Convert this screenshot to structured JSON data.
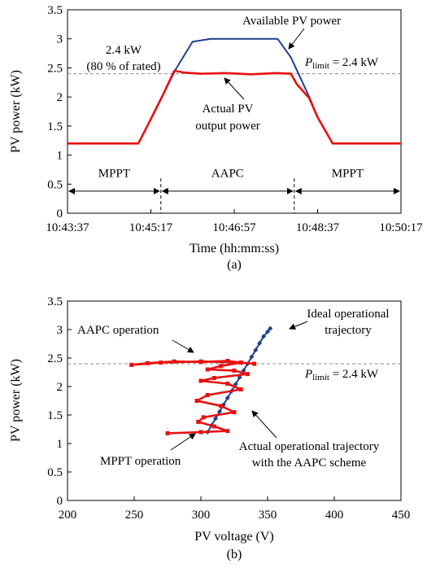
{
  "chart_data": [
    {
      "id": "a",
      "type": "line",
      "panel_label": "(a)",
      "xlabel": "Time (hh:mm:ss)",
      "ylabel": "PV power (kW)",
      "x_tick_labels": [
        "10:43:37",
        "10:45:17",
        "10:46:57",
        "10:48:37",
        "10:50:17"
      ],
      "x_tick_seconds": [
        0,
        100,
        200,
        300,
        400
      ],
      "xlim_seconds": [
        0,
        400
      ],
      "ylim": [
        0,
        3.5
      ],
      "y_ticks": [
        "0",
        "0.5",
        "1",
        "1.5",
        "2",
        "2.5",
        "3",
        "3.5"
      ],
      "grid": false,
      "reference_line": {
        "y": 2.4,
        "style": "dashed",
        "color": "#8c8c8c"
      },
      "series": [
        {
          "name": "Available PV power",
          "color": "#1f3f8f",
          "x": [
            0,
            85,
            130,
            150,
            172,
            252,
            268,
            290,
            300,
            318,
            345,
            400
          ],
          "y": [
            1.2,
            1.2,
            2.48,
            2.95,
            3.0,
            3.0,
            2.68,
            2.0,
            1.65,
            1.2,
            1.2,
            1.2
          ]
        },
        {
          "name": "Actual PV output power",
          "color": "#e81010",
          "x": [
            0,
            85,
            100,
            115,
            128,
            140,
            160,
            190,
            220,
            250,
            268,
            275,
            290,
            300,
            318,
            345,
            400
          ],
          "y": [
            1.2,
            1.2,
            1.62,
            2.05,
            2.45,
            2.42,
            2.4,
            2.41,
            2.39,
            2.41,
            2.4,
            2.22,
            1.98,
            1.65,
            1.2,
            1.2,
            1.2
          ]
        }
      ],
      "annotations": {
        "available_label": "Available PV power",
        "actual_label_line1": "Actual PV",
        "actual_label_line2": "output power",
        "rated_line1": "2.4 kW",
        "rated_line2": "(80 % of rated)",
        "plimit_sym": "P",
        "plimit_sub": "limit",
        "plimit_val": " = 2.4 kW"
      },
      "modes": [
        {
          "label": "MPPT",
          "from": 0,
          "to": 112
        },
        {
          "label": "AAPC",
          "from": 112,
          "to": 272
        },
        {
          "label": "MPPT",
          "from": 272,
          "to": 400
        }
      ],
      "mode_boundaries": [
        112,
        272
      ]
    },
    {
      "id": "b",
      "type": "line",
      "panel_label": "(b)",
      "xlabel": "PV voltage (V)",
      "ylabel": "PV power (kW)",
      "x_ticks": [
        "200",
        "250",
        "300",
        "350",
        "400",
        "450"
      ],
      "xlim": [
        200,
        450
      ],
      "ylim": [
        0,
        3.5
      ],
      "y_ticks": [
        "0",
        "0.5",
        "1",
        "1.5",
        "2",
        "2.5",
        "3",
        "3.5"
      ],
      "grid": false,
      "reference_line": {
        "y": 2.4,
        "style": "dashed",
        "color": "#8c8c8c"
      },
      "series": [
        {
          "name": "Ideal operational trajectory",
          "color": "#1f3f8f",
          "marker": "diamond",
          "x": [
            305,
            308,
            311,
            314,
            317,
            320,
            323,
            326,
            329,
            332,
            335,
            338,
            341,
            344,
            347,
            350,
            352
          ],
          "y": [
            1.2,
            1.32,
            1.44,
            1.56,
            1.68,
            1.8,
            1.92,
            2.04,
            2.16,
            2.28,
            2.4,
            2.52,
            2.64,
            2.76,
            2.88,
            2.96,
            3.02
          ]
        },
        {
          "name": "Actual operational trajectory with the AAPC scheme",
          "color": "#e81010",
          "marker": "square",
          "x": [
            275,
            300,
            320,
            310,
            298,
            302,
            325,
            315,
            297,
            305,
            330,
            320,
            300,
            310,
            335,
            325,
            305,
            315,
            330,
            320,
            300,
            280,
            260,
            248,
            270,
            300,
            330,
            340
          ],
          "y": [
            1.18,
            1.2,
            1.22,
            1.3,
            1.38,
            1.46,
            1.55,
            1.66,
            1.75,
            1.85,
            1.95,
            2.05,
            2.1,
            2.15,
            2.22,
            2.28,
            2.3,
            2.36,
            2.42,
            2.45,
            2.43,
            2.44,
            2.41,
            2.38,
            2.42,
            2.44,
            2.42,
            2.4
          ]
        }
      ],
      "annotations": {
        "aapc_label": "AAPC operation",
        "mppt_label": "MPPT operation",
        "ideal_line1": "Ideal operational",
        "ideal_line2": "trajectory",
        "actual_line1": "Actual operational trajectory",
        "actual_line2": "with the AAPC scheme",
        "plimit_sym": "P",
        "plimit_sub": "limit",
        "plimit_val": " = 2.4 kW"
      }
    }
  ]
}
